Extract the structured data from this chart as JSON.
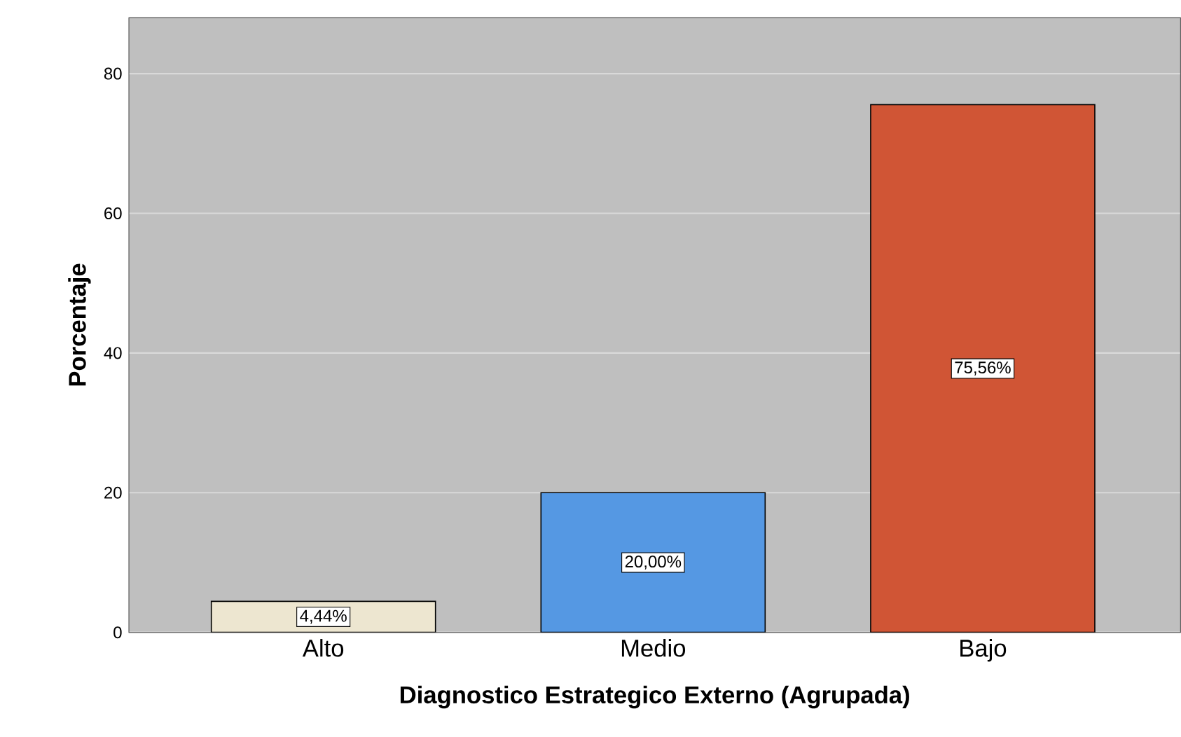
{
  "chart_data": {
    "type": "bar",
    "xlabel": "Diagnostico Estrategico Externo (Agrupada)",
    "ylabel": "Porcentaje",
    "categories": [
      "Alto",
      "Medio",
      "Bajo"
    ],
    "values": [
      4.44,
      20.0,
      75.56
    ],
    "value_labels": [
      "4,44%",
      "20,00%",
      "75,56%"
    ],
    "colors": [
      "#ede6d0",
      "#5598e3",
      "#d05535"
    ],
    "ylim": [
      0,
      88
    ],
    "yticks": [
      0,
      20,
      40,
      60,
      80
    ],
    "grid": "y"
  }
}
